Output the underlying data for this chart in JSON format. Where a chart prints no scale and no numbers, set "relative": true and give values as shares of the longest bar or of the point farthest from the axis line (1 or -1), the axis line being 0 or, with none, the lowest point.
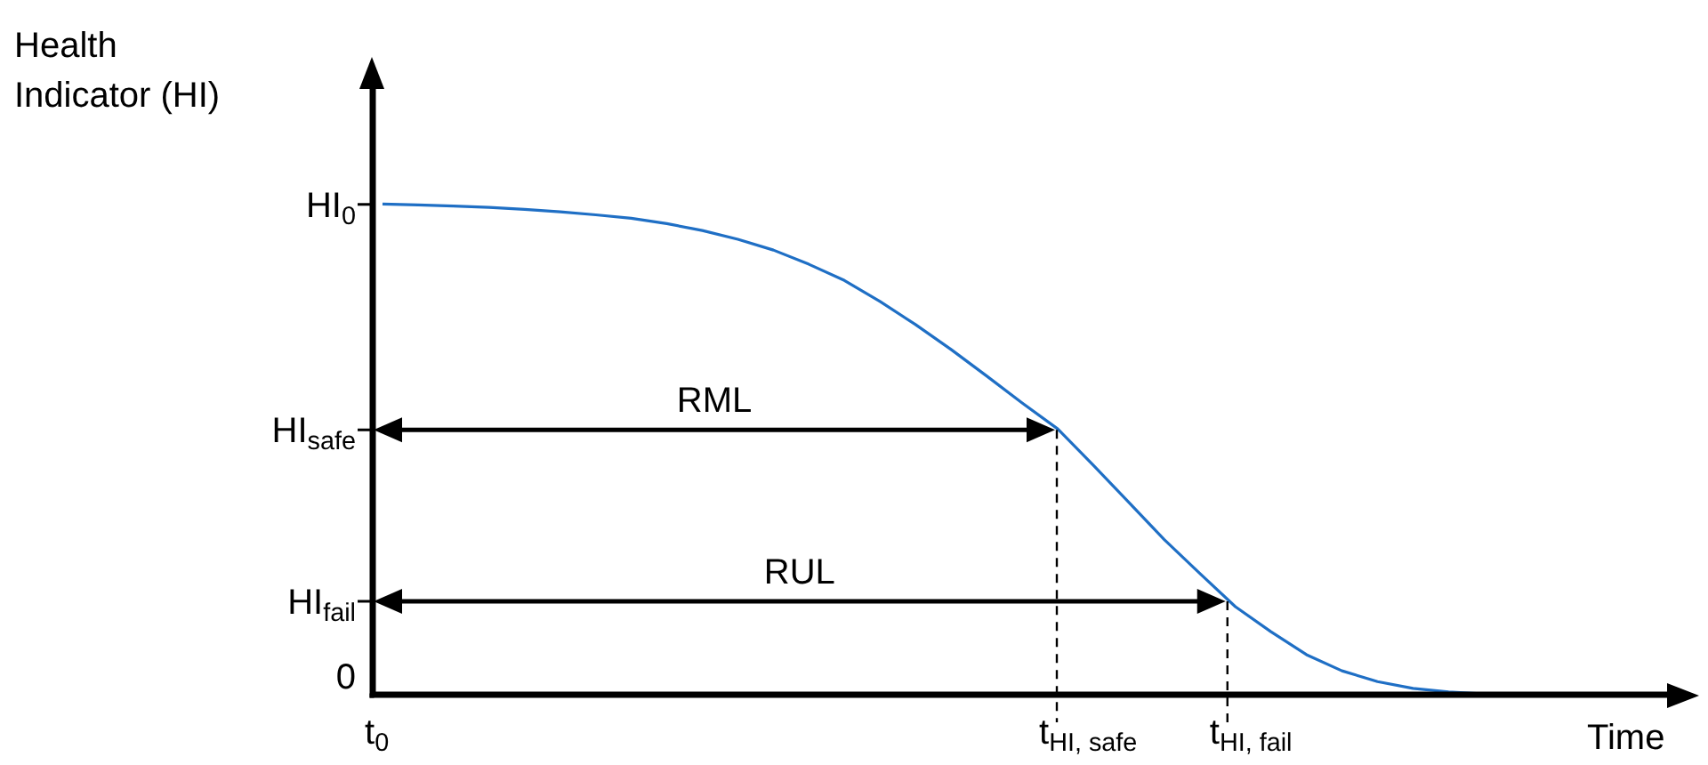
{
  "chart_data": {
    "type": "line",
    "ylabel": "Health Indicator (HI)",
    "xlabel": "Time",
    "relative": true,
    "marker": "none",
    "grid": false,
    "categories": [
      null,
      null,
      null,
      null,
      null,
      null,
      null,
      null,
      null,
      null,
      null,
      null,
      null,
      null,
      null,
      null,
      null,
      null,
      null,
      null,
      null,
      null,
      null,
      null,
      null,
      null,
      null,
      null,
      null,
      null,
      null,
      null,
      null
    ],
    "series": [
      {
        "color": "#1f6fc5",
        "values": [
          1,
          0.998,
          0.996,
          0.993,
          0.989,
          0.984,
          0.978,
          0.971,
          0.96,
          0.946,
          0.928,
          0.906,
          0.877,
          0.844,
          0.801,
          0.754,
          0.703,
          0.649,
          0.594,
          0.541,
          0.467,
          0.391,
          0.315,
          0.246,
          0.178,
          0.127,
          0.08,
          0.047,
          0.025,
          0.011,
          0.004,
          0,
          0
        ]
      }
    ],
    "ref_lines": [
      {
        "axis": "y",
        "value": 0.541,
        "label": "RML"
      },
      {
        "axis": "y",
        "value": 0.192,
        "label": "RUL"
      }
    ],
    "annotations": [
      "HI$_{0}$",
      "HI$_{safe}$",
      "HI$_{fail}$",
      "0",
      "t$_{0}$",
      "t$_{HI, safe}$",
      "t$_{HI, fail}$"
    ]
  }
}
